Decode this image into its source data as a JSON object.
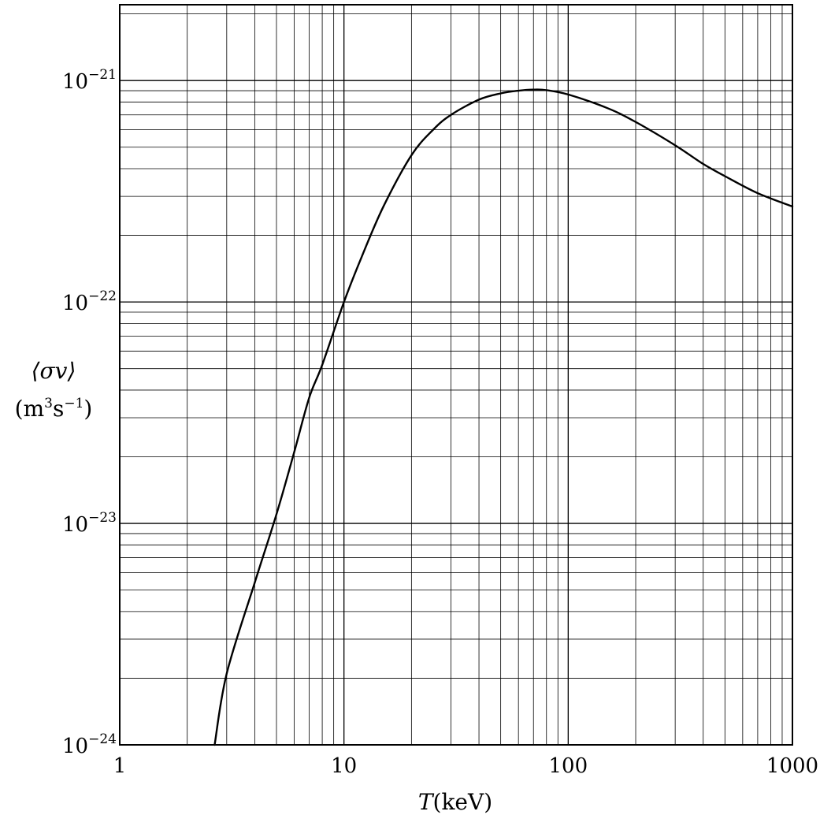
{
  "chart_data": {
    "type": "line",
    "title": "",
    "xlabel": {
      "symbol": "T",
      "unit": "(keV)"
    },
    "ylabel": {
      "line1": "⟨σv⟩",
      "line2_prefix": "(m",
      "line2_exp1": "3",
      "line2_mid": "s",
      "line2_exp2": "−1",
      "line2_suffix": ")"
    },
    "x_scale": "log",
    "y_scale": "log",
    "xlim": [
      1,
      1000
    ],
    "ylim": [
      1e-24,
      2.2e-21
    ],
    "grid": true,
    "x_ticks": [
      {
        "value": 1,
        "label": "1"
      },
      {
        "value": 10,
        "label": "10"
      },
      {
        "value": 100,
        "label": "100"
      },
      {
        "value": 1000,
        "label": "1000"
      }
    ],
    "y_ticks": [
      {
        "value": 1e-24,
        "base": "10",
        "exp": "−24"
      },
      {
        "value": 1e-23,
        "base": "10",
        "exp": "−23"
      },
      {
        "value": 1e-22,
        "base": "10",
        "exp": "−22"
      },
      {
        "value": 1e-21,
        "base": "10",
        "exp": "−21"
      }
    ],
    "series": [
      {
        "x": [
          2.65,
          3,
          4,
          5,
          6,
          7,
          8,
          10,
          12,
          15,
          20,
          25,
          30,
          40,
          50,
          60,
          70,
          80,
          100,
          150,
          200,
          300,
          400,
          500,
          700,
          1000
        ],
        "y": [
          1e-24,
          2.1e-24,
          5.4e-24,
          1.1e-23,
          2.1e-23,
          3.7e-23,
          5.2e-23,
          1e-22,
          1.6e-22,
          2.7e-22,
          4.6e-22,
          6e-22,
          7e-22,
          8.2e-22,
          8.75e-22,
          9e-22,
          9.1e-22,
          9.05e-22,
          8.65e-22,
          7.5e-22,
          6.5e-22,
          5.1e-22,
          4.2e-22,
          3.7e-22,
          3.1e-22,
          2.7e-22
        ]
      }
    ]
  }
}
